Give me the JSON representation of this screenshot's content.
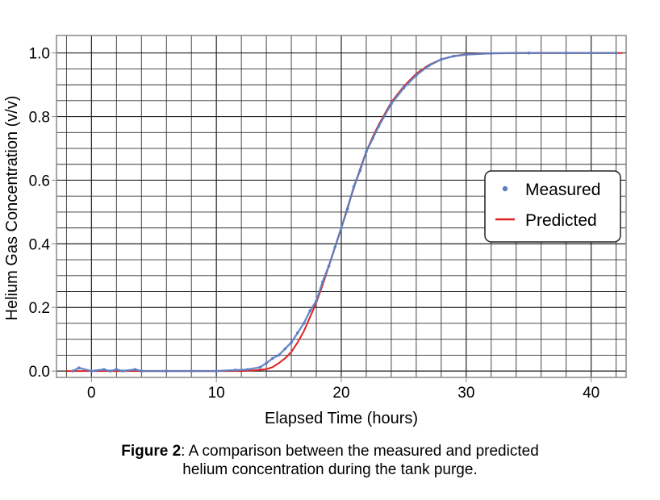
{
  "chart_data": {
    "type": "line",
    "xlabel": "Elapsed Time (hours)",
    "ylabel": "Helium Gas Concentration (v/v)",
    "xlim": [
      -2.8,
      42.8
    ],
    "ylim": [
      -0.02,
      1.055
    ],
    "x_ticks": [
      0,
      10,
      20,
      30,
      40
    ],
    "y_ticks": [
      0.0,
      0.2,
      0.4,
      0.6,
      0.8,
      1.0
    ],
    "x_tick_labels": [
      "0",
      "10",
      "20",
      "30",
      "40"
    ],
    "y_tick_labels": [
      "0.0",
      "0.2",
      "0.4",
      "0.6",
      "0.8",
      "1.0"
    ],
    "grid": true,
    "legend_position": "right",
    "series": [
      {
        "name": "Measured",
        "style": "points",
        "color": "#5b7fc2",
        "x": [
          -1.5,
          -1.0,
          0.0,
          1.0,
          1.5,
          2.0,
          2.5,
          3.5,
          4.0,
          6.0,
          8.0,
          10.0,
          11.5,
          12.5,
          13.5,
          14.0,
          14.5,
          15.0,
          15.5,
          16.0,
          16.5,
          17.0,
          17.5,
          18.0,
          18.5,
          19.0,
          19.5,
          20.0,
          20.5,
          21.0,
          21.5,
          22.0,
          22.5,
          23.0,
          24.0,
          25.0,
          26.0,
          27.0,
          28.0,
          29.0,
          30.0,
          32.0,
          35.0,
          38.0,
          40.0,
          42.0
        ],
        "y": [
          0.0,
          0.01,
          0.0,
          0.005,
          0.0,
          0.005,
          0.0,
          0.005,
          0.0,
          0.0,
          0.0,
          0.0,
          0.003,
          0.005,
          0.012,
          0.025,
          0.04,
          0.05,
          0.07,
          0.09,
          0.12,
          0.15,
          0.19,
          0.22,
          0.28,
          0.33,
          0.39,
          0.45,
          0.51,
          0.58,
          0.63,
          0.69,
          0.73,
          0.77,
          0.84,
          0.89,
          0.93,
          0.96,
          0.98,
          0.99,
          0.995,
          0.999,
          1.0,
          1.0,
          1.0,
          1.0
        ]
      },
      {
        "name": "Predicted",
        "style": "line",
        "color": "#e02020",
        "x": [
          -2.0,
          0.0,
          5.0,
          10.0,
          12.0,
          13.0,
          14.0,
          14.5,
          15.0,
          15.5,
          16.0,
          16.5,
          17.0,
          17.5,
          18.0,
          18.5,
          19.0,
          19.5,
          20.0,
          20.5,
          21.0,
          21.5,
          22.0,
          22.5,
          23.0,
          24.0,
          25.0,
          26.0,
          27.0,
          28.0,
          29.0,
          30.0,
          32.0,
          35.0,
          38.0,
          40.0,
          42.5
        ],
        "y": [
          0.0,
          0.0,
          0.0,
          0.0,
          0.0,
          0.002,
          0.006,
          0.012,
          0.025,
          0.04,
          0.06,
          0.09,
          0.125,
          0.17,
          0.215,
          0.27,
          0.33,
          0.39,
          0.45,
          0.515,
          0.575,
          0.635,
          0.69,
          0.735,
          0.775,
          0.845,
          0.895,
          0.935,
          0.962,
          0.98,
          0.99,
          0.996,
          0.999,
          1.0,
          1.0,
          1.0,
          1.0
        ]
      }
    ]
  },
  "caption": {
    "label": "Figure 2",
    "text": ": A comparison between the measured and predicted",
    "text_line2": "helium concentration during the tank purge."
  }
}
